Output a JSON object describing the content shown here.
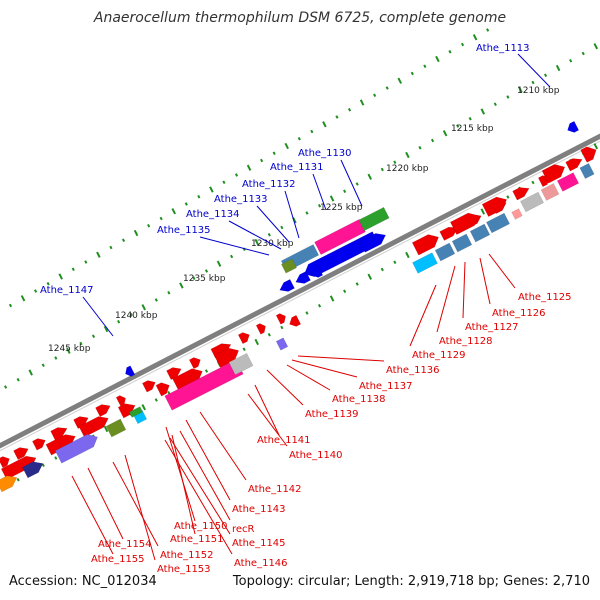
{
  "title": "Anaerocellum thermophilum DSM 6725, complete genome",
  "footer": {
    "accession": "Accession: NC_012034",
    "stats": "Topology: circular; Length: 2,919,718 bp; Genes: 2,710"
  },
  "colors": {
    "backbone": "#7f7f7f",
    "tick_green": "#1f8f1f",
    "forward_gene": "#ee0000",
    "reverse_gene": "#0000ee",
    "forward_label": "#dd0000",
    "reverse_label": "#0000cc",
    "magenta": "#ff1493",
    "steel_blue": "#4682b4",
    "violet": "#7b68ee",
    "cyan": "#00bfff",
    "green": "#2ca02c",
    "olive": "#6b8e23",
    "orange": "#ff8c00",
    "grey": "#bbbbbb"
  },
  "scale_labels": [
    "1210 kbp",
    "1215 kbp",
    "1220 kbp",
    "1225 kbp",
    "1230 kbp",
    "1235 kbp",
    "1240 kbp",
    "1245 kbp"
  ],
  "blue_labels": [
    "Athe_1113",
    "Athe_1130",
    "Athe_1131",
    "Athe_1132",
    "Athe_1133",
    "Athe_1134",
    "Athe_1135",
    "Athe_1147"
  ],
  "red_labels": [
    "Athe_1125",
    "Athe_1126",
    "Athe_1127",
    "Athe_1128",
    "Athe_1129",
    "Athe_1136",
    "Athe_1137",
    "Athe_1138",
    "Athe_1139",
    "Athe_1141",
    "Athe_1140",
    "Athe_1142",
    "Athe_1143",
    "Athe_1150",
    "recR",
    "Athe_1151",
    "Athe_1145",
    "Athe_1146",
    "Athe_1154",
    "Athe_1152",
    "Athe_1155",
    "Athe_1153"
  ]
}
